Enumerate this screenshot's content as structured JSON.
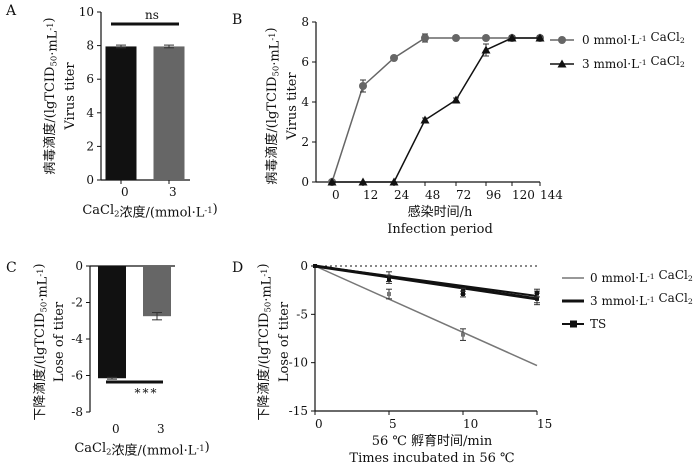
{
  "chart_data": [
    {
      "panel": "A",
      "type": "bar",
      "categories": [
        "0",
        "3"
      ],
      "values": [
        7.95,
        7.95
      ],
      "errors": [
        0.08,
        0.08
      ],
      "bar_colors": [
        "#111111",
        "#666666"
      ],
      "ylabel": "病毒滴度/(lgTCID50·mL-1)",
      "ylabel_en": "Virus titer",
      "xlabel": "CaCl2浓度/(mmol·L-1)",
      "ylim": [
        0,
        10
      ],
      "yticks": [
        "0",
        "2",
        "4",
        "6",
        "8",
        "10"
      ],
      "significance": "ns"
    },
    {
      "panel": "B",
      "type": "line",
      "x": [
        0,
        12,
        24,
        48,
        72,
        96,
        120,
        144
      ],
      "xticks": [
        "0",
        "12",
        "24",
        "48",
        "72",
        "96",
        "120",
        "144"
      ],
      "series": [
        {
          "name": "0 mmol·L-1 CaCl2",
          "marker": "circle",
          "color": "#666666",
          "values": [
            0,
            4.8,
            6.2,
            7.2,
            7.2,
            7.2,
            7.2,
            7.2
          ],
          "errors": [
            0,
            0.3,
            0.1,
            0.2,
            0.1,
            0.1,
            0.1,
            0.1
          ]
        },
        {
          "name": "3 mmol·L-1 CaCl2",
          "marker": "triangle",
          "color": "#111111",
          "values": [
            0,
            0,
            0,
            3.1,
            4.1,
            6.6,
            7.2,
            7.2
          ],
          "errors": [
            0,
            0,
            0,
            0.1,
            0.1,
            0.3,
            0.1,
            0.1
          ]
        }
      ],
      "ylabel": "病毒滴度/(lgTCID50·mL-1)",
      "ylabel_en": "Virus titer",
      "xlabel": "感染时间/h",
      "xlabel_en": "Infection period",
      "ylim": [
        0,
        8
      ],
      "yticks": [
        "0",
        "2",
        "4",
        "6",
        "8"
      ],
      "legend_position": "right"
    },
    {
      "panel": "C",
      "type": "bar",
      "categories": [
        "0",
        "3"
      ],
      "values": [
        -6.15,
        -2.75
      ],
      "errors": [
        0.05,
        0.2
      ],
      "bar_colors": [
        "#111111",
        "#666666"
      ],
      "ylabel": "下降滴度/(lgTCID50·mL-1)",
      "ylabel_en": "Lose of titer",
      "xlabel": "CaCl2浓度/(mmol·L-1)",
      "ylim": [
        -8,
        0
      ],
      "yticks": [
        "0",
        "-2",
        "-4",
        "-6",
        "-8"
      ],
      "significance": "***"
    },
    {
      "panel": "D",
      "type": "scatter",
      "x_ticks": [
        "0",
        "5",
        "10",
        "15"
      ],
      "xlim": [
        0,
        15
      ],
      "series": [
        {
          "name": "0 mmol·L-1 CaCl2",
          "color": "#777777",
          "line_width": 1.5,
          "fit": [
            [
              0,
              0
            ],
            [
              15,
              -10.3
            ]
          ],
          "points": [
            [
              0,
              0
            ],
            [
              5,
              -2.9
            ],
            [
              10,
              -7.1
            ],
            [
              15,
              -3.2
            ]
          ],
          "errors": [
            0,
            0.5,
            0.6,
            0.6
          ]
        },
        {
          "name": "3 mmol·L-1 CaCl2",
          "color": "#111111",
          "line_width": 3,
          "fit": [
            [
              0,
              0
            ],
            [
              15,
              -3.4
            ]
          ],
          "points": [
            [
              0,
              0
            ],
            [
              5,
              -1.1
            ],
            [
              10,
              -2.6
            ],
            [
              15,
              -3.4
            ]
          ],
          "errors": [
            0,
            0.5,
            0.3,
            0.6
          ]
        },
        {
          "name": "TS",
          "color": "#111111",
          "line_width": 2,
          "fit": [
            [
              0,
              0
            ],
            [
              15,
              -3.1
            ]
          ],
          "points": [
            [
              0,
              0
            ],
            [
              5,
              -1.4
            ],
            [
              10,
              -2.9
            ],
            [
              15,
              -2.8
            ]
          ],
          "errors": [
            0,
            0.4,
            0.3,
            0.4
          ]
        }
      ],
      "ylabel": "下降滴度/(lgTCID50·mL-1)",
      "ylabel_en": "Lose of titer",
      "xlabel": "56 ℃ 孵育时间/min",
      "xlabel_en": "Times incubated in 56 ℃",
      "ylim": [
        -15,
        0
      ],
      "yticks": [
        "0",
        "-5",
        "-10",
        "-15"
      ],
      "reference_line": "dotted at y = 0",
      "legend_position": "right"
    }
  ]
}
